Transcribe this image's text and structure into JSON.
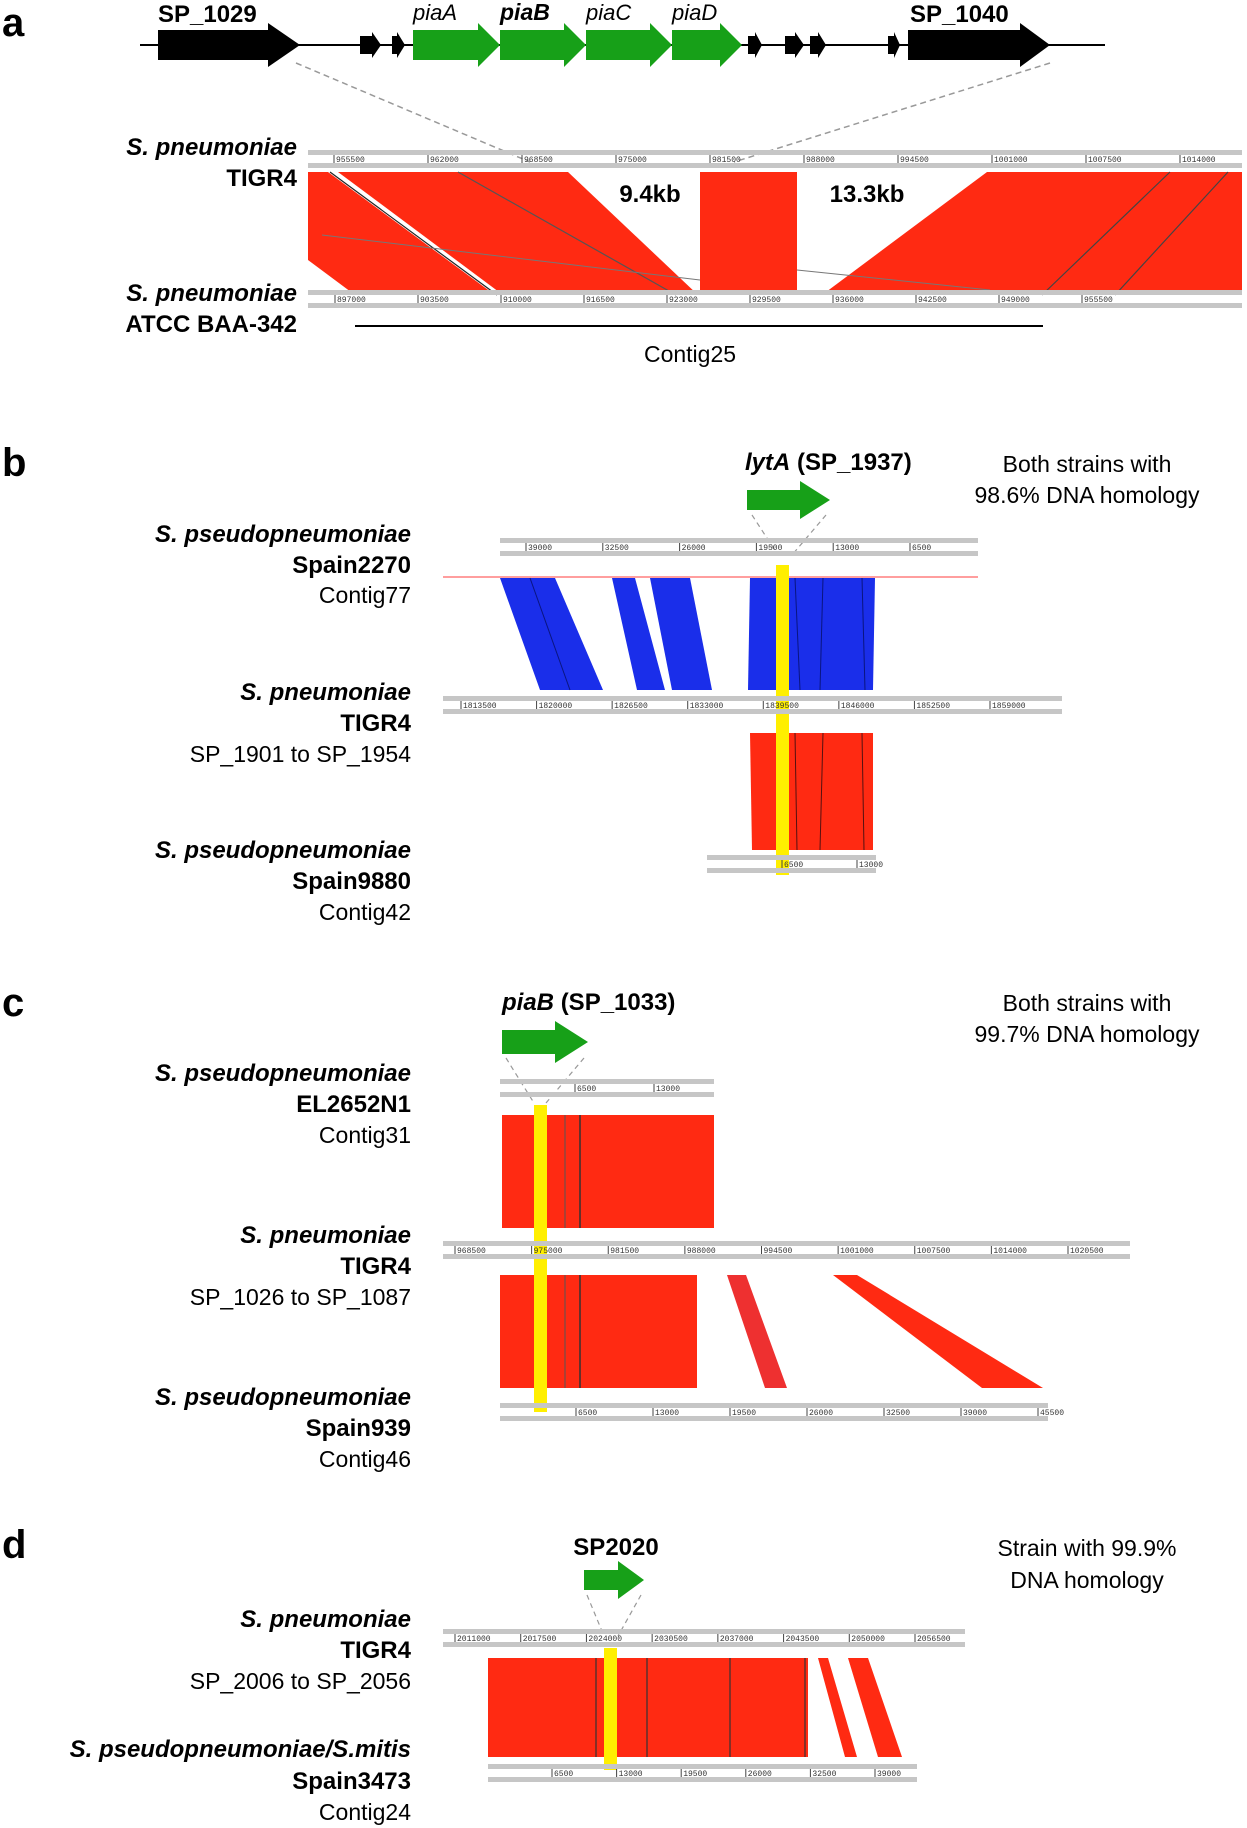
{
  "panels": {
    "a": {
      "letter": "a",
      "genes": [
        "SP_1029",
        "piaA",
        "piaB",
        "piaC",
        "piaD",
        "SP_1040"
      ],
      "top_label": [
        "S. pneumoniae",
        "TIGR4"
      ],
      "bottom_label": [
        "S. pneumoniae",
        "ATCC BAA-342"
      ],
      "gaps": [
        "9.4kb",
        "13.3kb"
      ],
      "contig": "Contig25",
      "top_ticks": [
        "955500",
        "962000",
        "968500",
        "975000",
        "981500",
        "988000",
        "994500",
        "1001000",
        "1007500",
        "1014000"
      ],
      "bottom_ticks": [
        "897000",
        "903500",
        "910000",
        "916500",
        "923000",
        "929500",
        "936000",
        "942500",
        "949000",
        "955500"
      ]
    },
    "b": {
      "letter": "b",
      "gene": "lytA",
      "gene_id": "(SP_1937)",
      "note": [
        "Both strains with",
        "98.6% DNA homology"
      ],
      "g1": [
        "S. pseudopneumoniae",
        "Spain2270",
        "Contig77"
      ],
      "g2": [
        "S. pneumoniae",
        "TIGR4",
        "SP_1901 to SP_1954"
      ],
      "g3": [
        "S. pseudopneumoniae",
        "Spain9880",
        "Contig42"
      ],
      "t1": [
        "39000",
        "32500",
        "26000",
        "19500",
        "13000",
        "6500"
      ],
      "t2": [
        "1813500",
        "1820000",
        "1826500",
        "1833000",
        "1839500",
        "1846000",
        "1852500",
        "1859000"
      ],
      "t3": [
        "6500",
        "13000"
      ]
    },
    "c": {
      "letter": "c",
      "gene": "piaB",
      "gene_id": "(SP_1033)",
      "note": [
        "Both strains with",
        "99.7% DNA homology"
      ],
      "g1": [
        "S. pseudopneumoniae",
        "EL2652N1",
        "Contig31"
      ],
      "g2": [
        "S. pneumoniae",
        "TIGR4",
        "SP_1026 to SP_1087"
      ],
      "g3": [
        "S. pseudopneumoniae",
        "Spain939",
        "Contig46"
      ],
      "t1": [
        "6500",
        "13000"
      ],
      "t2": [
        "968500",
        "975000",
        "981500",
        "988000",
        "994500",
        "1001000",
        "1007500",
        "1014000",
        "1020500"
      ],
      "t3": [
        "6500",
        "13000",
        "19500",
        "26000",
        "32500",
        "39000",
        "45500"
      ]
    },
    "d": {
      "letter": "d",
      "gene": "SP2020",
      "note": [
        "Strain with 99.9%",
        "DNA homology"
      ],
      "g1": [
        "S. pneumoniae",
        "TIGR4",
        "SP_2006 to SP_2056"
      ],
      "g2": [
        "S. pseudopneumoniae/S.mitis",
        "Spain3473",
        "Contig24"
      ],
      "t1": [
        "2011000",
        "2017500",
        "2024000",
        "2030500",
        "2037000",
        "2043500",
        "2050000",
        "2056500"
      ],
      "t2": [
        "6500",
        "13000",
        "19500",
        "26000",
        "32500",
        "39000"
      ]
    }
  },
  "colors": {
    "red": "#ff2a12",
    "blue": "#1a2eea",
    "green": "#17a018",
    "yellow": "#ffef00",
    "track": "#c6c6c6"
  }
}
